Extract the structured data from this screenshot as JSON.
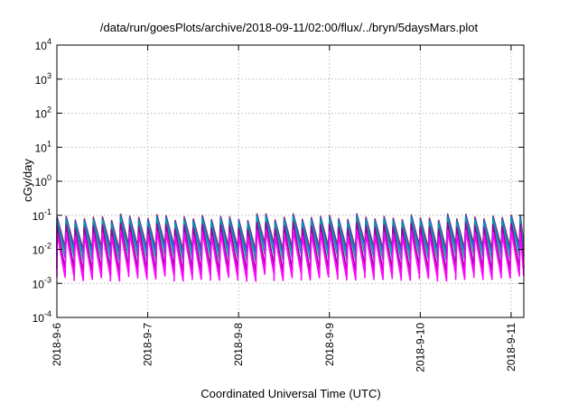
{
  "chart_data": {
    "type": "line",
    "title": "/data/run/goesPlots/archive/2018-09-11/02:00/flux/../bryn/5daysMars.plot",
    "xlabel": "Coordinated Universal Time (UTC)",
    "ylabel": "cGy/day",
    "yscale": "log",
    "ylim": [
      0.0001,
      10000
    ],
    "xlim_days": [
      0,
      5.14
    ],
    "grid": true,
    "x_tick_labels": [
      "2018-9-6",
      "2018-9-7",
      "2018-9-8",
      "2018-9-9",
      "2018-9-10",
      "2018-9-11"
    ],
    "x_tick_days": [
      0,
      1,
      2,
      3,
      4,
      5
    ],
    "y_ticks": [
      {
        "base": "10",
        "exp": "-4",
        "value": 0.0001
      },
      {
        "base": "10",
        "exp": "-3",
        "value": 0.001
      },
      {
        "base": "10",
        "exp": "-2",
        "value": 0.01
      },
      {
        "base": "10",
        "exp": "-1",
        "value": 0.1
      },
      {
        "base": "10",
        "exp": "0",
        "value": 1
      },
      {
        "base": "10",
        "exp": "1",
        "value": 10
      },
      {
        "base": "10",
        "exp": "2",
        "value": 100
      },
      {
        "base": "10",
        "exp": "3",
        "value": 1000
      },
      {
        "base": "10",
        "exp": "4",
        "value": 10000
      }
    ],
    "pattern": {
      "period_days": 0.1,
      "note_values": "sawtooth oscillation repeating every ~0.1 day"
    },
    "series": [
      {
        "color": "#dd0000",
        "peak": 0.09,
        "trough": 0.012
      },
      {
        "color": "#2060e0",
        "peak": 0.085,
        "trough": 0.01
      },
      {
        "color": "#00a0a0",
        "peak": 0.07,
        "trough": 0.006
      },
      {
        "color": "#a000a0",
        "peak": 0.05,
        "trough": 0.0028
      },
      {
        "color": "#ff00ff",
        "peak": 0.03,
        "trough": 0.0016
      }
    ]
  }
}
